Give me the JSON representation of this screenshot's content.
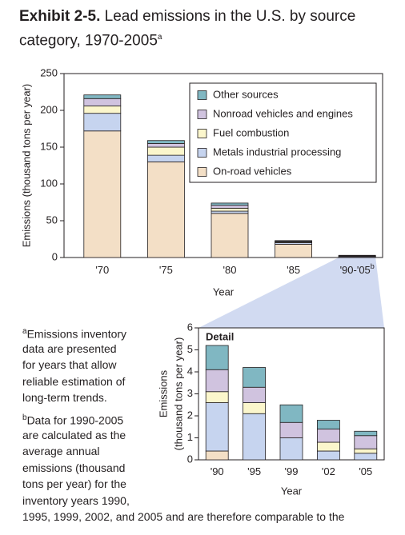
{
  "chart_data": [
    {
      "type": "bar",
      "stacked": true,
      "title_prefix": "Exhibit 2-5.",
      "title": "Lead emissions in the U.S. by source category, 1970-2005",
      "title_marker": "a",
      "x_label": "Year",
      "y_label": "Emissions (thousand tons per year)",
      "categories": [
        "'70",
        "'75",
        "'80",
        "'85",
        "'90-'05"
      ],
      "category_marker": "b",
      "series": [
        {
          "name": "On-road vehicles",
          "color": "#f3dfc6",
          "values": [
            172,
            130,
            60,
            18,
            0.1
          ]
        },
        {
          "name": "Metals industrial processing",
          "color": "#c6d4ef",
          "values": [
            24,
            9,
            3,
            2,
            1.2
          ]
        },
        {
          "name": "Fuel combustion",
          "color": "#fbf6cc",
          "values": [
            10,
            11,
            4,
            1,
            0.3
          ]
        },
        {
          "name": "Nonroad vehicles and engines",
          "color": "#d0c3df",
          "values": [
            10,
            5,
            4,
            1,
            0.7
          ]
        },
        {
          "name": "Other sources",
          "color": "#80b7c2",
          "values": [
            5,
            4,
            3,
            1,
            0.7
          ]
        }
      ],
      "ylim": [
        0,
        250
      ],
      "yticks": [
        0,
        50,
        100,
        150,
        200,
        250
      ],
      "legend": "upper right"
    },
    {
      "type": "bar",
      "stacked": true,
      "title": "Detail",
      "x_label": "Year",
      "y_label": [
        "Emissions",
        "(thousand tons per year)"
      ],
      "categories": [
        "'90",
        "'95",
        "'99",
        "'02",
        "'05"
      ],
      "series": [
        {
          "color": "#f3dfc6",
          "values": [
            0.4,
            0,
            0,
            0,
            0
          ]
        },
        {
          "color": "#c6d4ef",
          "values": [
            2.2,
            2.1,
            1.0,
            0.4,
            0.3
          ]
        },
        {
          "color": "#fbf6cc",
          "values": [
            0.5,
            0.5,
            0,
            0.4,
            0.2
          ]
        },
        {
          "color": "#d0c3df",
          "values": [
            1.0,
            0.7,
            0.7,
            0.6,
            0.6
          ]
        },
        {
          "color": "#80b7c2",
          "values": [
            1.1,
            0.9,
            0.8,
            0.4,
            0.2
          ]
        }
      ],
      "ylim": [
        0,
        6
      ],
      "yticks": [
        0,
        1,
        2,
        3,
        4,
        5,
        6
      ]
    }
  ],
  "notes": [
    {
      "marker": "a",
      "lines": [
        "Emissions inventory",
        "data are presented",
        "for years that allow",
        "reliable estimation of",
        "long-term trends."
      ]
    },
    {
      "marker": "b",
      "lines": [
        "Data for 1990-2005",
        "are calculated as the",
        "average annual",
        "emissions (thousand",
        "tons per year) for the",
        "inventory years 1990,",
        "1995, 1999, 2002, and 2005 and are therefore comparable to the"
      ]
    }
  ]
}
